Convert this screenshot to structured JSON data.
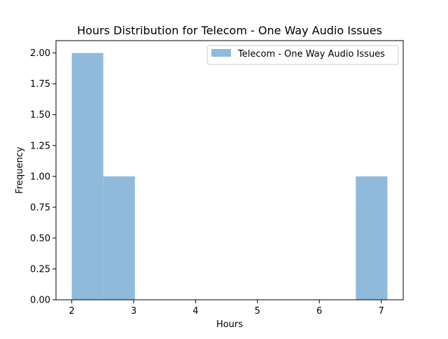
{
  "chart_data": {
    "type": "bar",
    "title": "Hours Distribution for Telecom - One Way Audio Issues",
    "xlabel": "Hours",
    "ylabel": "Frequency",
    "xlim": [
      1.745,
      7.355
    ],
    "ylim": [
      0,
      2.1
    ],
    "x_ticks": [
      2,
      3,
      4,
      5,
      6,
      7
    ],
    "y_ticks": [
      0.0,
      0.25,
      0.5,
      0.75,
      1.0,
      1.25,
      1.5,
      1.75,
      2.0
    ],
    "y_tick_labels": [
      "0.00",
      "0.25",
      "0.50",
      "0.75",
      "1.00",
      "1.25",
      "1.50",
      "1.75",
      "2.00"
    ],
    "bins": [
      {
        "x0": 2.0,
        "x1": 2.51,
        "count": 2
      },
      {
        "x0": 2.51,
        "x1": 3.02,
        "count": 1
      },
      {
        "x0": 3.02,
        "x1": 3.53,
        "count": 0
      },
      {
        "x0": 3.53,
        "x1": 4.04,
        "count": 0
      },
      {
        "x0": 4.04,
        "x1": 4.55,
        "count": 0
      },
      {
        "x0": 4.55,
        "x1": 5.06,
        "count": 0
      },
      {
        "x0": 5.06,
        "x1": 5.57,
        "count": 0
      },
      {
        "x0": 5.57,
        "x1": 6.08,
        "count": 0
      },
      {
        "x0": 6.08,
        "x1": 6.59,
        "count": 0
      },
      {
        "x0": 6.59,
        "x1": 7.1,
        "count": 1
      }
    ],
    "series": [
      {
        "name": "Telecom - One Way Audio Issues",
        "color": "#8fbadb"
      }
    ],
    "legend_position": "top-right",
    "grid": false
  }
}
